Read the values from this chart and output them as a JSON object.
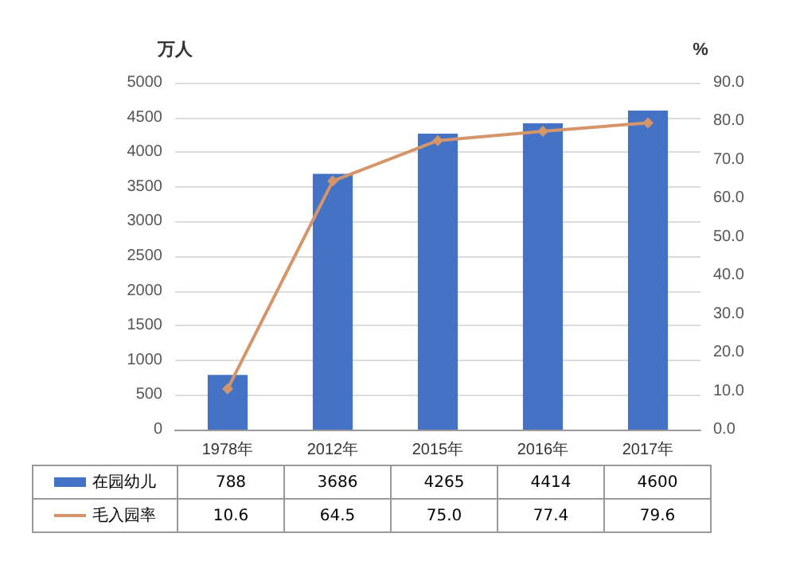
{
  "chart_data": {
    "type": "bar",
    "categories": [
      "1978年",
      "2012年",
      "2015年",
      "2016年",
      "2017年"
    ],
    "ylabel": "万人",
    "y2label": "%",
    "series": [
      {
        "name": "在园幼儿",
        "color": "#4472c4",
        "values": [
          788,
          3686,
          4265,
          4414,
          4600
        ],
        "value_labels": [
          "788",
          "3686",
          "4265",
          "4414",
          "4600"
        ]
      },
      {
        "name": "毛入园率",
        "type": "line",
        "axis": "y2",
        "color": "#d4956a",
        "marker": "diamond",
        "values": [
          10.6,
          64.5,
          75.0,
          77.4,
          79.6
        ],
        "value_labels": [
          "10.6",
          "64.5",
          "75.0",
          "77.4",
          "79.6"
        ]
      }
    ],
    "ylim": [
      0,
      5000
    ],
    "yticks": [
      0,
      500,
      1000,
      1500,
      2000,
      2500,
      3000,
      3500,
      4000,
      4500,
      5000
    ],
    "y2lim": [
      0,
      90
    ],
    "y2ticks": [
      {
        "value": 0,
        "label": "0.0"
      },
      {
        "value": 10,
        "label": "10.0"
      },
      {
        "value": 20,
        "label": "20.0"
      },
      {
        "value": 30,
        "label": "30.0"
      },
      {
        "value": 40,
        "label": "40.0"
      },
      {
        "value": 50,
        "label": "50.0"
      },
      {
        "value": 60,
        "label": "60.0"
      },
      {
        "value": 70,
        "label": "70.0"
      },
      {
        "value": 80,
        "label": "80.0"
      },
      {
        "value": 90,
        "label": "90.0"
      }
    ],
    "grid": "y",
    "legend": "bottom"
  }
}
